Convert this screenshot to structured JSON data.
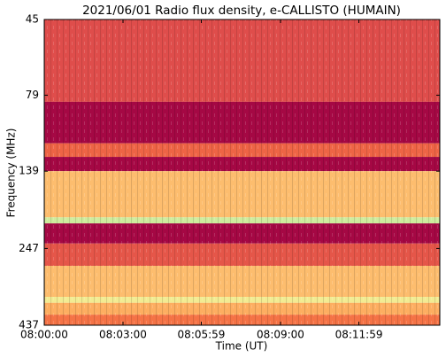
{
  "chart_data": {
    "type": "spectrogram",
    "title": "2021/06/01  Radio flux density, e-CALLISTO (HUMAIN)",
    "xlabel": "Time (UT)",
    "ylabel": "Frequency (MHz)",
    "xlim": [
      28800,
      29704
    ],
    "xticks": [
      {
        "value": 28800,
        "label": "08:00:00"
      },
      {
        "value": 28980,
        "label": "08:03:00"
      },
      {
        "value": 29159,
        "label": "08:05:59"
      },
      {
        "value": 29340,
        "label": "08:09:00"
      },
      {
        "value": 29519,
        "label": "08:11:59"
      }
    ],
    "ylim": [
      45,
      437
    ],
    "yticks": [
      45,
      79,
      139,
      247,
      437
    ],
    "ylog": true,
    "yinverted": true,
    "colormap": [
      "#9e0142",
      "#d53e4f",
      "#f46d43",
      "#fdae61",
      "#fee08b",
      "#e6f598",
      "#abdda4"
    ],
    "bands": [
      {
        "freq": [
          45,
          83
        ],
        "level": 0.22
      },
      {
        "freq": [
          83,
          113
        ],
        "level": 0.02
      },
      {
        "freq": [
          113,
          125
        ],
        "level": 0.3
      },
      {
        "freq": [
          125,
          139
        ],
        "level": 0.02
      },
      {
        "freq": [
          139,
          196
        ],
        "level": 0.55
      },
      {
        "freq": [
          196,
          205
        ],
        "level": 0.9
      },
      {
        "freq": [
          205,
          238
        ],
        "level": 0.02
      },
      {
        "freq": [
          238,
          281
        ],
        "level": 0.25
      },
      {
        "freq": [
          281,
          354
        ],
        "level": 0.55
      },
      {
        "freq": [
          354,
          370
        ],
        "level": 0.75
      },
      {
        "freq": [
          370,
          404
        ],
        "level": 0.5
      },
      {
        "freq": [
          404,
          437
        ],
        "level": 0.35
      }
    ]
  }
}
